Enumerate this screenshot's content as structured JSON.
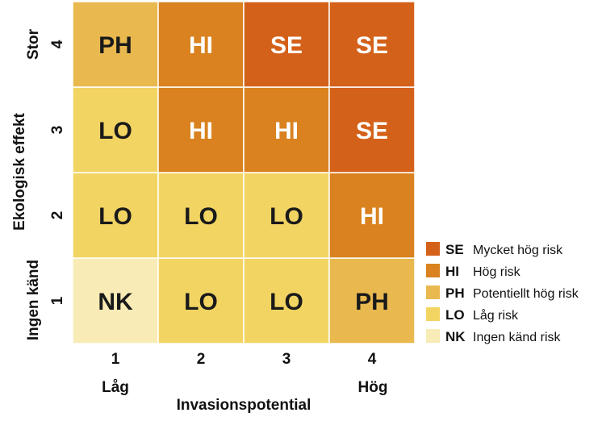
{
  "chart_data": {
    "type": "heatmap",
    "xlabel": "Invasionspotential",
    "ylabel": "Ekologisk effekt",
    "x_ticks": [
      "1",
      "2",
      "3",
      "4"
    ],
    "y_ticks": [
      "1",
      "2",
      "3",
      "4"
    ],
    "x_end_labels": {
      "low": "Låg",
      "high": "Hög"
    },
    "y_end_labels": {
      "low": "Ingen känd",
      "high": "Stor"
    },
    "grid": [
      [
        "NK",
        "LO",
        "LO",
        "PH"
      ],
      [
        "LO",
        "LO",
        "LO",
        "HI"
      ],
      [
        "LO",
        "HI",
        "HI",
        "SE"
      ],
      [
        "PH",
        "HI",
        "SE",
        "SE"
      ]
    ],
    "categories": [
      {
        "code": "SE",
        "label": "Mycket hög risk",
        "color": "#D4611A",
        "text_color": "#ffffff"
      },
      {
        "code": "HI",
        "label": "Hög risk",
        "color": "#D9821F",
        "text_color": "#ffffff"
      },
      {
        "code": "PH",
        "label": "Potentiellt hög risk",
        "color": "#E9B94F",
        "text_color": "#1a1a1a"
      },
      {
        "code": "LO",
        "label": "Låg risk",
        "color": "#F2D462",
        "text_color": "#1a1a1a"
      },
      {
        "code": "NK",
        "label": "Ingen känd risk",
        "color": "#F8EBB5",
        "text_color": "#1a1a1a"
      }
    ],
    "legend_position": "bottom-right"
  }
}
